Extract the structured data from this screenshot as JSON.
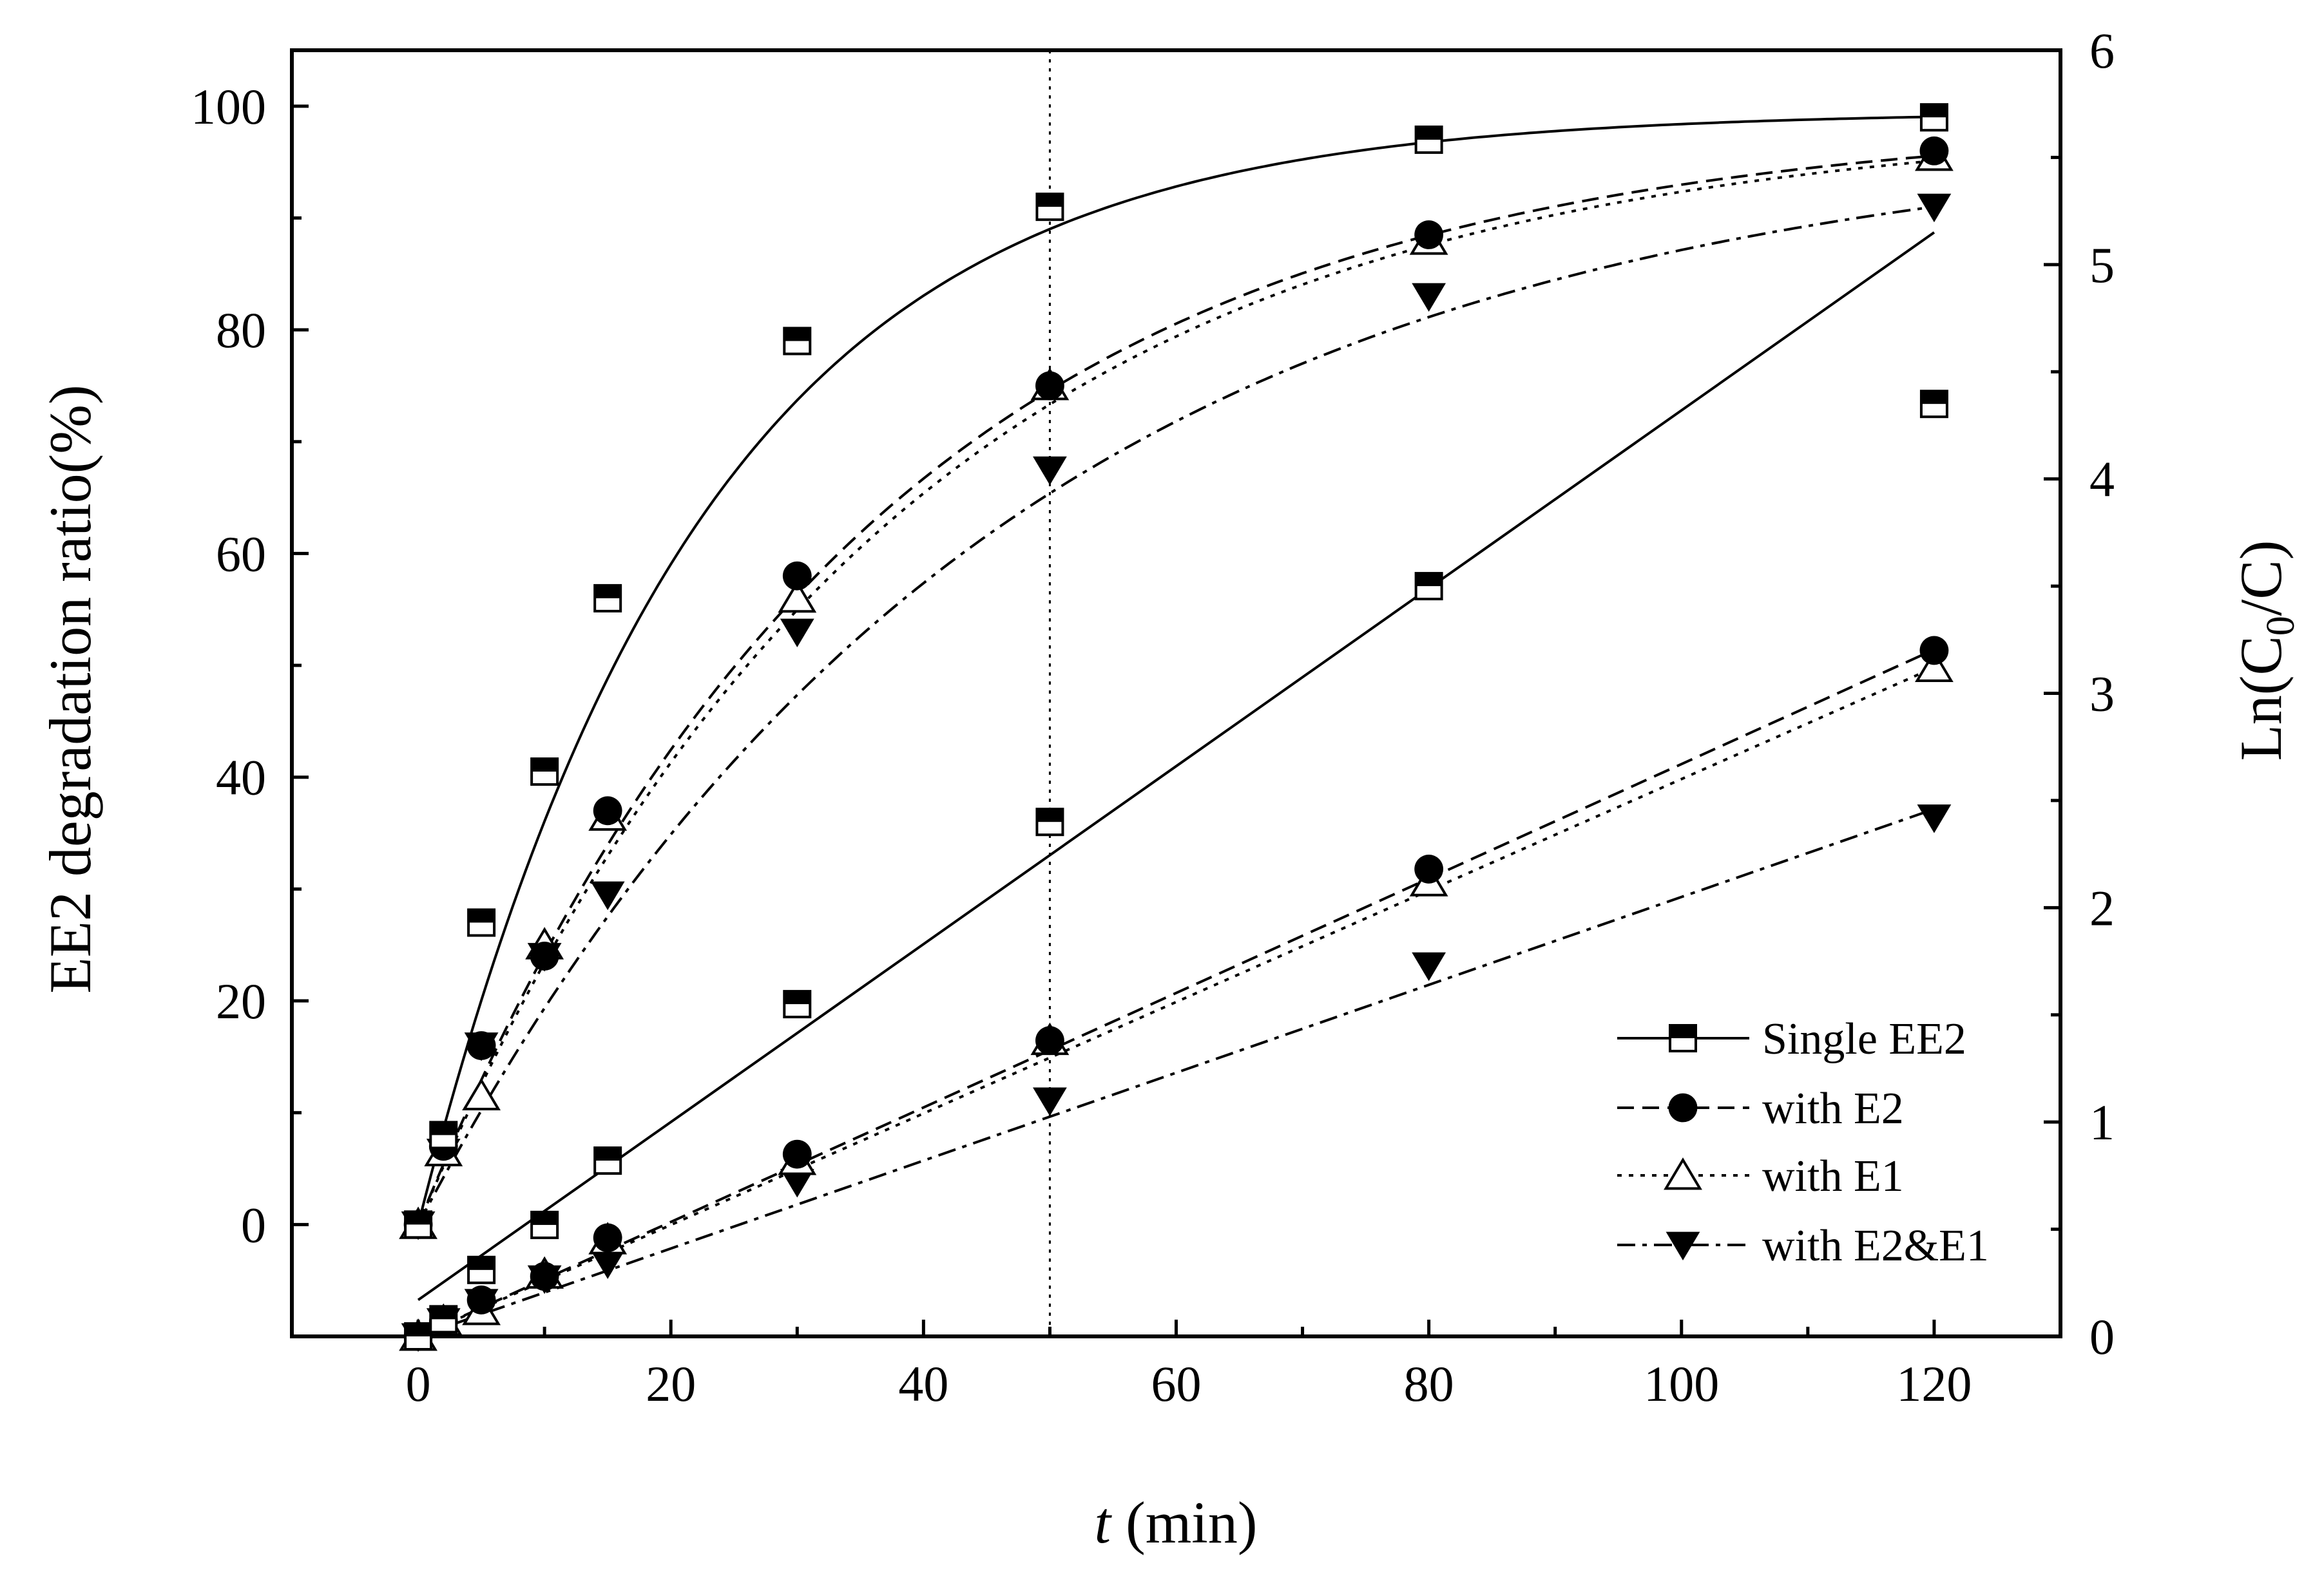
{
  "chart_data": {
    "type": "scatter",
    "xlabel": {
      "var": "t",
      "unit": " (min)"
    },
    "ylabel_left": "EE2 degradation ratio(%)",
    "ylabel_right": {
      "pre": "Ln(C",
      "sub": "0",
      "post": "/C)"
    },
    "xlim": [
      -10,
      130
    ],
    "ylim_left": [
      -10,
      105
    ],
    "ylim_right": [
      0,
      6
    ],
    "xticks": [
      0,
      20,
      40,
      60,
      80,
      100,
      120
    ],
    "xtick_labels": [
      "0",
      "20",
      "40",
      "60",
      "80",
      "100",
      "120"
    ],
    "yticks_left": [
      0,
      20,
      40,
      60,
      80,
      100
    ],
    "ytick_labels_left": [
      "0",
      "20",
      "40",
      "60",
      "80",
      "100"
    ],
    "yticks_right": [
      0,
      1,
      2,
      3,
      4,
      5,
      6
    ],
    "ytick_labels_right": [
      "0",
      "1",
      "2",
      "3",
      "4",
      "5",
      "6"
    ],
    "reference_line_x": 50,
    "legend_position": "bottom-right",
    "series": [
      {
        "name": "Single EE2",
        "marker": "half-square",
        "line": "solid",
        "degradation": {
          "x": [
            0,
            2,
            5,
            10,
            15,
            30,
            50,
            80,
            120
          ],
          "y": [
            0,
            8,
            27,
            40.5,
            56,
            79,
            91,
            97,
            99
          ],
          "fit": {
            "form": "exp",
            "ymax": 99.5,
            "k": 0.045
          }
        },
        "kinetics": {
          "x": [
            0,
            2,
            5,
            10,
            15,
            30,
            50,
            80,
            120
          ],
          "y": [
            0,
            0.08,
            0.31,
            0.52,
            0.82,
            1.55,
            2.4,
            3.5,
            4.35
          ],
          "fit": {
            "slope": 0.0415,
            "intercept": 0.17,
            "x_range": [
              0,
              120
            ]
          }
        }
      },
      {
        "name": "with E2",
        "marker": "filled-circle",
        "line": "dashed",
        "degradation": {
          "x": [
            0,
            2,
            5,
            10,
            15,
            30,
            50,
            80,
            120
          ],
          "y": [
            0,
            7,
            16,
            24,
            37,
            58,
            75,
            88.5,
            96
          ],
          "fit": {
            "form": "exp",
            "ymax": 99,
            "k": 0.028
          }
        },
        "kinetics": {
          "x": [
            0,
            2,
            5,
            10,
            15,
            30,
            50,
            80,
            120
          ],
          "y": [
            0,
            0.07,
            0.17,
            0.28,
            0.46,
            0.85,
            1.38,
            2.18,
            3.2
          ],
          "fit": {
            "slope": 0.0267,
            "intercept": 0,
            "x_range": [
              0,
              120
            ]
          }
        }
      },
      {
        "name": "with E1",
        "marker": "open-triangle",
        "line": "dotted",
        "degradation": {
          "x": [
            0,
            2,
            5,
            10,
            15,
            30,
            50,
            80,
            120
          ],
          "y": [
            0,
            6.5,
            11.5,
            25,
            36.5,
            56,
            75,
            88,
            95.5
          ],
          "fit": {
            "form": "exp",
            "ymax": 99,
            "k": 0.027
          }
        },
        "kinetics": {
          "x": [
            0,
            2,
            5,
            10,
            15,
            30,
            50,
            80,
            120
          ],
          "y": [
            0,
            0.07,
            0.12,
            0.29,
            0.45,
            0.82,
            1.38,
            2.12,
            3.12
          ],
          "fit": {
            "slope": 0.026,
            "intercept": 0,
            "x_range": [
              0,
              120
            ]
          }
        }
      },
      {
        "name": "with E2&E1",
        "marker": "filled-down-triangle",
        "line": "dash-dot",
        "degradation": {
          "x": [
            0,
            2,
            5,
            10,
            15,
            30,
            50,
            80,
            120
          ],
          "y": [
            0,
            6.5,
            16,
            24,
            29.5,
            53,
            67.5,
            83,
            91
          ],
          "fit": {
            "form": "exp",
            "ymax": 98,
            "k": 0.022
          }
        },
        "kinetics": {
          "x": [
            0,
            2,
            5,
            10,
            15,
            30,
            50,
            80,
            120
          ],
          "y": [
            0,
            0.07,
            0.16,
            0.27,
            0.34,
            0.72,
            1.1,
            1.73,
            2.42
          ],
          "fit": {
            "slope": 0.0205,
            "intercept": 0,
            "x_range": [
              0,
              120
            ]
          }
        }
      }
    ]
  }
}
